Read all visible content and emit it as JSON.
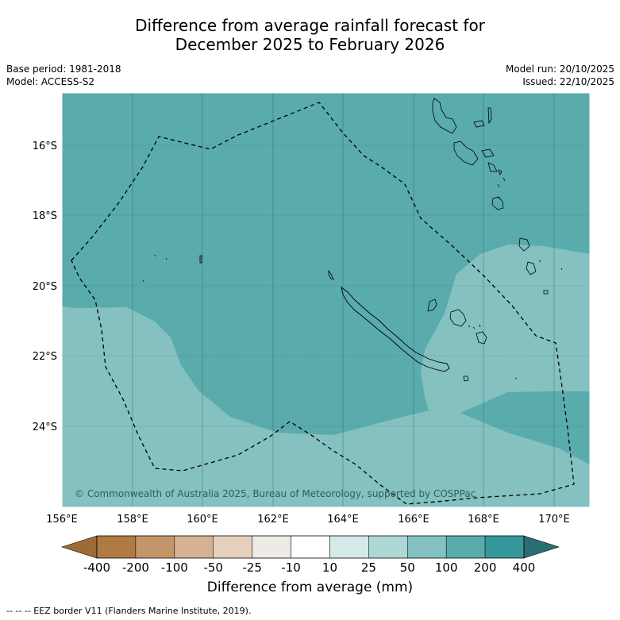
{
  "header": {
    "title_line1": "Difference from average rainfall forecast for",
    "title_line2": "December 2025 to February 2026",
    "base_period": "Base period: 1981-2018",
    "model": "Model: ACCESS-S2",
    "model_run": "Model run: 20/10/2025",
    "issued": "Issued: 22/10/2025"
  },
  "map": {
    "lat_labels": [
      "16°S",
      "18°S",
      "20°S",
      "22°S",
      "24°S"
    ],
    "lon_labels": [
      "156°E",
      "158°E",
      "160°E",
      "162°E",
      "164°E",
      "166°E",
      "168°E",
      "170°E"
    ],
    "copyright": "© Commonwealth of Australia 2025, Bureau of Meteorology, supported by COSPPac",
    "colors": {
      "category_100_200": "#5aabab",
      "category_50_100": "#84c1c0",
      "coastline": "#000000",
      "eez_border": "#000000"
    }
  },
  "colorbar": {
    "labels": [
      "-400",
      "-200",
      "-100",
      "-50",
      "-25",
      "-10",
      "10",
      "25",
      "50",
      "100",
      "200",
      "400"
    ],
    "colors": [
      "#9e6a35",
      "#b07a43",
      "#c39669",
      "#d4b293",
      "#e6d1bd",
      "#eeebe7",
      "#ffffff",
      "#d5eae8",
      "#add8d6",
      "#84c1c0",
      "#5aabab",
      "#35979b",
      "#2a6e72"
    ],
    "title": "Difference from average (mm)"
  },
  "footer": {
    "eez_note": "--  --  -- EEZ border V11 (Flanders Marine Institute, 2019)."
  }
}
